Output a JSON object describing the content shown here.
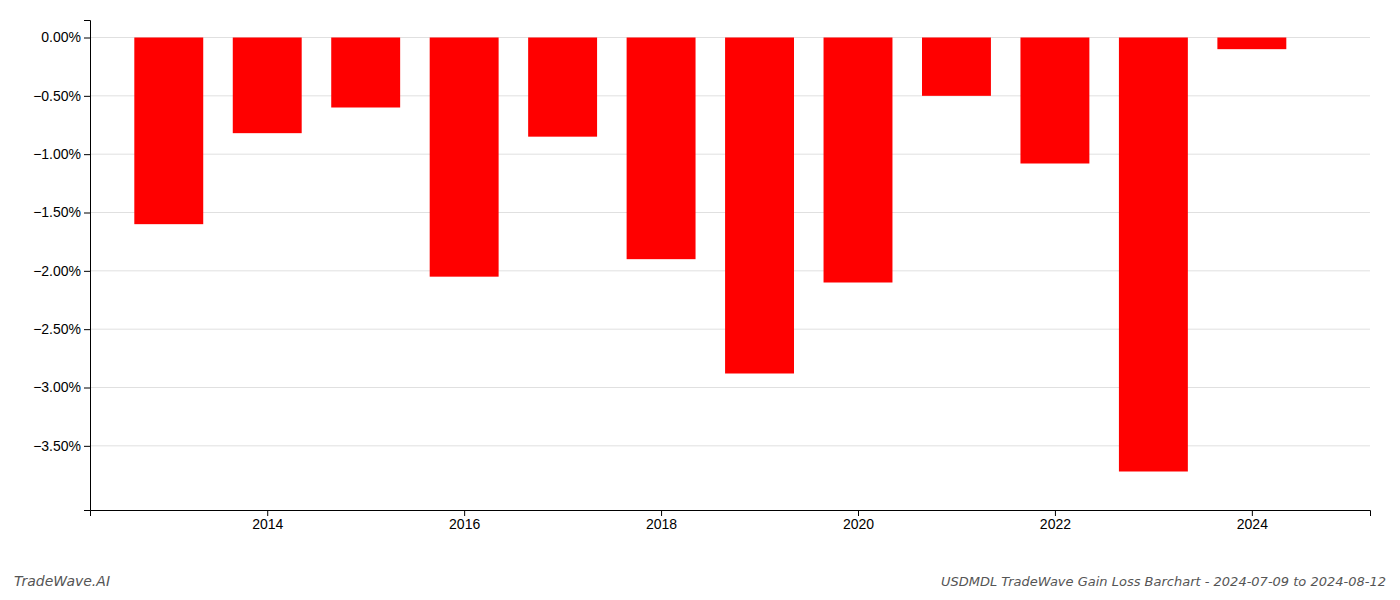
{
  "chart_data": {
    "type": "bar",
    "title": "USDMDL TradeWave Gain Loss Barchart - 2024-07-09 to 2024-08-12",
    "annotations": [
      "TradeWave.AI"
    ],
    "x": [
      2013,
      2014,
      2015,
      2016,
      2017,
      2018,
      2019,
      2020,
      2021,
      2022,
      2023,
      2024
    ],
    "values": [
      -1.6,
      -0.82,
      -0.6,
      -2.05,
      -0.85,
      -1.9,
      -2.88,
      -2.1,
      -0.5,
      -1.08,
      -3.72,
      -0.1
    ],
    "color": "#ff0000",
    "xlim": [
      2012.2,
      2025.2
    ],
    "xticks": [
      2014,
      2016,
      2018,
      2020,
      2022,
      2024
    ],
    "ylim": [
      -4.05,
      0.15
    ],
    "yticks": [
      {
        "value": 0.0,
        "label": "0.00%"
      },
      {
        "value": -0.5,
        "label": "−0.50%"
      },
      {
        "value": -1.0,
        "label": "−1.00%"
      },
      {
        "value": -1.5,
        "label": "−1.50%"
      },
      {
        "value": -2.0,
        "label": "−2.00%"
      },
      {
        "value": -2.5,
        "label": "−2.50%"
      },
      {
        "value": -3.0,
        "label": "−3.00%"
      },
      {
        "value": -3.5,
        "label": "−3.50%"
      }
    ],
    "grid": true
  }
}
